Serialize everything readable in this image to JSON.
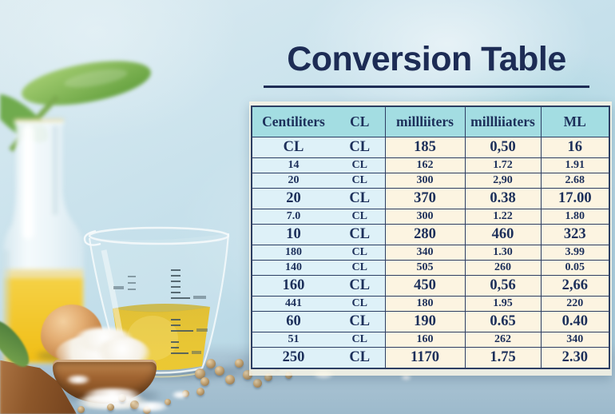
{
  "title": {
    "text": "Conversion Table"
  },
  "table": {
    "headers": [
      "Centiliters",
      "CL",
      "millliiters",
      "millliiaters",
      "ML"
    ],
    "rows": [
      {
        "size": "lg",
        "cells": [
          "CL",
          "CL",
          "185",
          "0,50",
          "16"
        ]
      },
      {
        "size": "sm",
        "cells": [
          "14",
          "CL",
          "162",
          "1.72",
          "1.91"
        ]
      },
      {
        "size": "sm",
        "merge_above": true,
        "cells": [
          "20",
          "CL",
          "300",
          "2,90",
          "2.68"
        ]
      },
      {
        "size": "lg",
        "cells": [
          "20",
          "CL",
          "370",
          "0.38",
          "17.00"
        ]
      },
      {
        "size": "sm",
        "cells": [
          "7.0",
          "CL",
          "300",
          "1.22",
          "1.80"
        ]
      },
      {
        "size": "lg",
        "cells": [
          "10",
          "CL",
          "280",
          "460",
          "323"
        ]
      },
      {
        "size": "sm",
        "cells": [
          "180",
          "CL",
          "340",
          "1.30",
          "3.99"
        ]
      },
      {
        "size": "sm",
        "cells": [
          "140",
          "CL",
          "505",
          "260",
          "0.05"
        ]
      },
      {
        "size": "lg",
        "cells": [
          "160",
          "CL",
          "450",
          "0,56",
          "2,66"
        ]
      },
      {
        "size": "sm",
        "cells": [
          "441",
          "CL",
          "180",
          "1.95",
          "220"
        ]
      },
      {
        "size": "lg",
        "cells": [
          "60",
          "CL",
          "190",
          "0.65",
          "0.40"
        ]
      },
      {
        "size": "sm",
        "cells": [
          "51",
          "CL",
          "160",
          "262",
          "340"
        ]
      },
      {
        "size": "lg",
        "cells": [
          "250",
          "CL",
          "1170",
          "1.75",
          "2.30"
        ]
      }
    ]
  },
  "colors": {
    "title_navy": "#1d2c55",
    "text_navy": "#1c2f5a",
    "border_navy": "#2c3e63",
    "header_bg": "#a3dde2",
    "cell_blue": "#def1f8",
    "cell_cream": "#fcf4e1",
    "oil_yellow": "#f0c322",
    "background_blue": "#c0dde9"
  },
  "scene": {
    "items": [
      "glass-bottle-of-oil",
      "measuring-cup-with-oil",
      "brown-egg",
      "wooden-bowl-with-flour",
      "wooden-board",
      "green-leaves",
      "peppercorns",
      "flour-spill"
    ]
  }
}
